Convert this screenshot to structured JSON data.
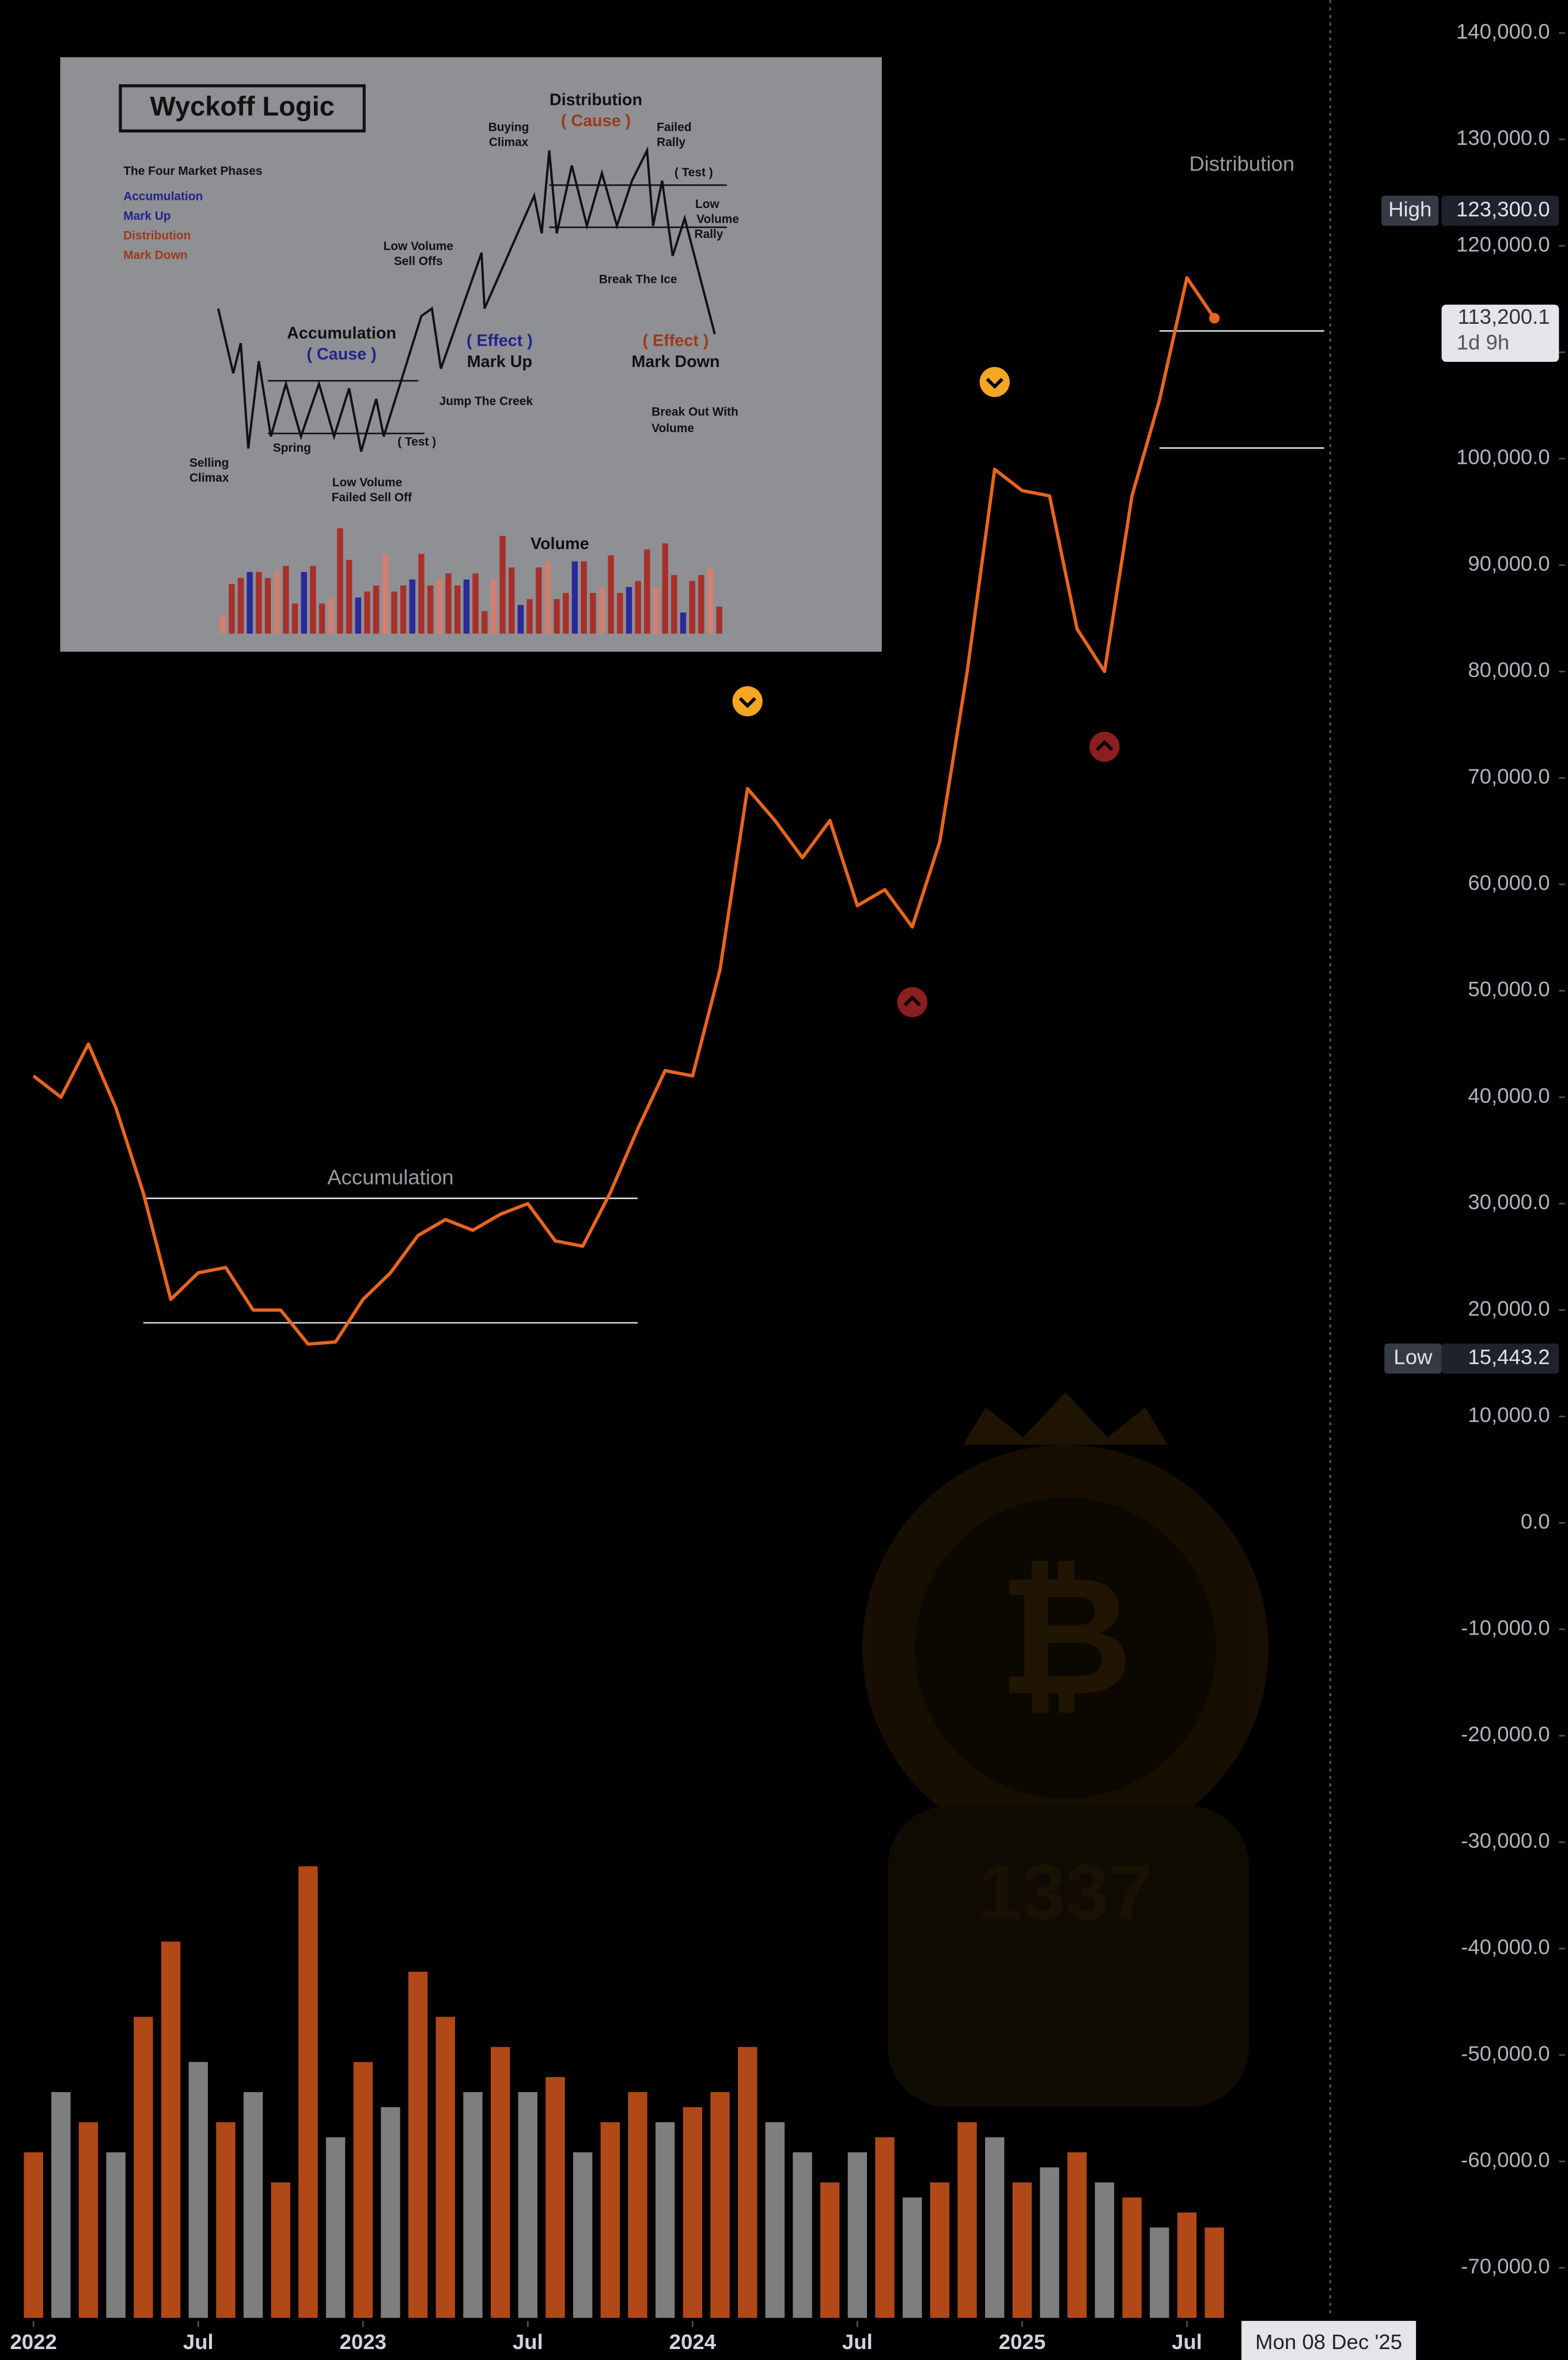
{
  "chart_data": {
    "type": "line",
    "x": [
      "2022-01",
      "2022-02",
      "2022-03",
      "2022-04",
      "2022-05",
      "2022-06",
      "2022-07",
      "2022-08",
      "2022-09",
      "2022-10",
      "2022-11",
      "2022-12",
      "2023-01",
      "2023-02",
      "2023-03",
      "2023-04",
      "2023-05",
      "2023-06",
      "2023-07",
      "2023-08",
      "2023-09",
      "2023-10",
      "2023-11",
      "2023-12",
      "2024-01",
      "2024-02",
      "2024-03",
      "2024-04",
      "2024-05",
      "2024-06",
      "2024-07",
      "2024-08",
      "2024-09",
      "2024-10",
      "2024-11",
      "2024-12",
      "2025-01",
      "2025-02",
      "2025-03",
      "2025-04",
      "2025-05",
      "2025-06",
      "2025-07",
      "2025-08"
    ],
    "series": [
      {
        "color": "#e8651e",
        "values": [
          42000,
          40000,
          45000,
          39000,
          31000,
          21000,
          23500,
          24000,
          20000,
          20000,
          16800,
          17000,
          21000,
          23500,
          27000,
          28500,
          27500,
          29000,
          30000,
          26500,
          26000,
          31000,
          37000,
          42500,
          42000,
          52000,
          69000,
          66000,
          62500,
          66000,
          58000,
          59500,
          56000,
          64000,
          80000,
          99000,
          97000,
          96500,
          84000,
          80000,
          96500,
          105500,
          117000,
          113200.1
        ]
      }
    ],
    "volume": {
      "up_color": "#c4501b",
      "down_color": "#8c8c8c",
      "vlim": [
        0,
        500
      ],
      "values": [
        110,
        150,
        130,
        110,
        200,
        250,
        170,
        130,
        150,
        90,
        300,
        120,
        170,
        140,
        230,
        200,
        150,
        180,
        150,
        160,
        110,
        130,
        150,
        130,
        140,
        150,
        180,
        130,
        110,
        90,
        110,
        120,
        80,
        90,
        130,
        120,
        90,
        100,
        110,
        90,
        80,
        60,
        70,
        60
      ],
      "up": [
        true,
        false,
        true,
        false,
        true,
        true,
        false,
        true,
        false,
        true,
        true,
        false,
        true,
        false,
        true,
        true,
        false,
        true,
        false,
        true,
        false,
        true,
        true,
        false,
        true,
        true,
        true,
        false,
        false,
        true,
        false,
        true,
        false,
        true,
        true,
        false,
        true,
        false,
        true,
        false,
        true,
        false,
        true,
        true
      ]
    },
    "xlim": [
      "2021-12",
      "2025-12"
    ],
    "xticks": [
      {
        "value": "2022-01",
        "label": "2022"
      },
      {
        "value": "2022-07",
        "label": "Jul"
      },
      {
        "value": "2023-01",
        "label": "2023"
      },
      {
        "value": "2023-07",
        "label": "Jul"
      },
      {
        "value": "2024-01",
        "label": "2024"
      },
      {
        "value": "2024-07",
        "label": "Jul"
      },
      {
        "value": "2025-01",
        "label": "2025"
      },
      {
        "value": "2025-07",
        "label": "Jul"
      }
    ],
    "ylim": [
      -74700,
      143100
    ],
    "yticks": [
      {
        "value": -70000,
        "label": "-70,000.0"
      },
      {
        "value": -60000,
        "label": "-60,000.0"
      },
      {
        "value": -50000,
        "label": "-50,000.0"
      },
      {
        "value": -40000,
        "label": "-40,000.0"
      },
      {
        "value": -30000,
        "label": "-30,000.0"
      },
      {
        "value": -20000,
        "label": "-20,000.0"
      },
      {
        "value": -10000,
        "label": "-10,000.0"
      },
      {
        "value": 0,
        "label": "0.0"
      },
      {
        "value": 10000,
        "label": "10,000.0"
      },
      {
        "value": 20000,
        "label": "20,000.0"
      },
      {
        "value": 30000,
        "label": "30,000.0"
      },
      {
        "value": 40000,
        "label": "40,000.0"
      },
      {
        "value": 50000,
        "label": "50,000.0"
      },
      {
        "value": 60000,
        "label": "60,000.0"
      },
      {
        "value": 70000,
        "label": "70,000.0"
      },
      {
        "value": 80000,
        "label": "80,000.0"
      },
      {
        "value": 90000,
        "label": "90,000.0"
      },
      {
        "value": 100000,
        "label": "100,000.0"
      },
      {
        "value": 110000,
        "label": "110,000.0"
      },
      {
        "value": 120000,
        "label": "120,000.0"
      },
      {
        "value": 130000,
        "label": "130,000.0"
      },
      {
        "value": 140000,
        "label": "140,000.0"
      }
    ],
    "high": {
      "label": "High",
      "value": 123300,
      "value_label": "123,300.0"
    },
    "low": {
      "label": "Low",
      "value": 15443.2,
      "value_label": "15,443.2"
    },
    "last": {
      "value": 113200.1,
      "value_label": "113,200.1",
      "countdown": "1d 9h"
    },
    "ranges": [
      {
        "label": "Accumulation",
        "high": 30500,
        "low": 18800,
        "from": "2022-05",
        "to": "2023-11"
      },
      {
        "label": "Distribution",
        "high": 112000,
        "low": 101000,
        "from": "2025-06",
        "to": "2025-12"
      }
    ],
    "markers": [
      {
        "x": "2024-03",
        "direction": "down",
        "color": "#f5a623"
      },
      {
        "x": "2024-12",
        "direction": "down",
        "color": "#f5a623"
      },
      {
        "x": "2024-09",
        "direction": "up",
        "color": "#8b1e1e"
      },
      {
        "x": "2025-04",
        "direction": "up",
        "color": "#8b1e1e"
      }
    ],
    "crosshair_label": "Mon 08 Dec '25",
    "watermark": "1337",
    "inset": {
      "title": "Wyckoff Logic",
      "subtitle": "The Four Market Phases",
      "phases": [
        "Accumulation",
        "Mark Up",
        "Distribution",
        "Mark Down"
      ],
      "labels": [
        "Distribution",
        "( Cause )",
        "Buying",
        "Climax",
        "Failed",
        "Rally",
        "( Test )",
        "Low",
        "Volume",
        "Rally",
        "Low Volume",
        "Sell Offs",
        "Break The Ice",
        "Accumulation",
        "( Cause )",
        "( Effect )",
        "Mark Up",
        "( Effect )",
        "Mark Down",
        "Jump The Creek",
        "Break Out With",
        "Volume",
        "Selling",
        "Climax",
        "Spring",
        "( Test )",
        "Low Volume",
        "Failed Sell Off",
        "Volume"
      ]
    }
  }
}
